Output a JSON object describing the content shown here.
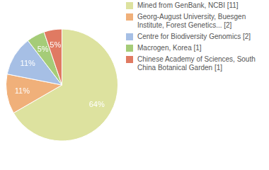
{
  "chart_data": {
    "type": "pie",
    "categories": [
      "Mined from GenBank, NCBI [11]",
      "Georg-August University, Buesgen Institute, Forest Genetics... [2]",
      "Centre for Biodiversity Genomics [2]",
      "Macrogen, Korea [1]",
      "Chinese Academy of Sciences, South China Botanical Garden [1]"
    ],
    "values": [
      64,
      11,
      11,
      5,
      5
    ],
    "value_labels": [
      "64%",
      "11%",
      "11%",
      "5%",
      "5%"
    ],
    "colors": [
      "#dde29f",
      "#f0b07a",
      "#a6bfe5",
      "#a5cc78",
      "#e07a62"
    ],
    "data_labels": true,
    "legend": "top-right"
  }
}
